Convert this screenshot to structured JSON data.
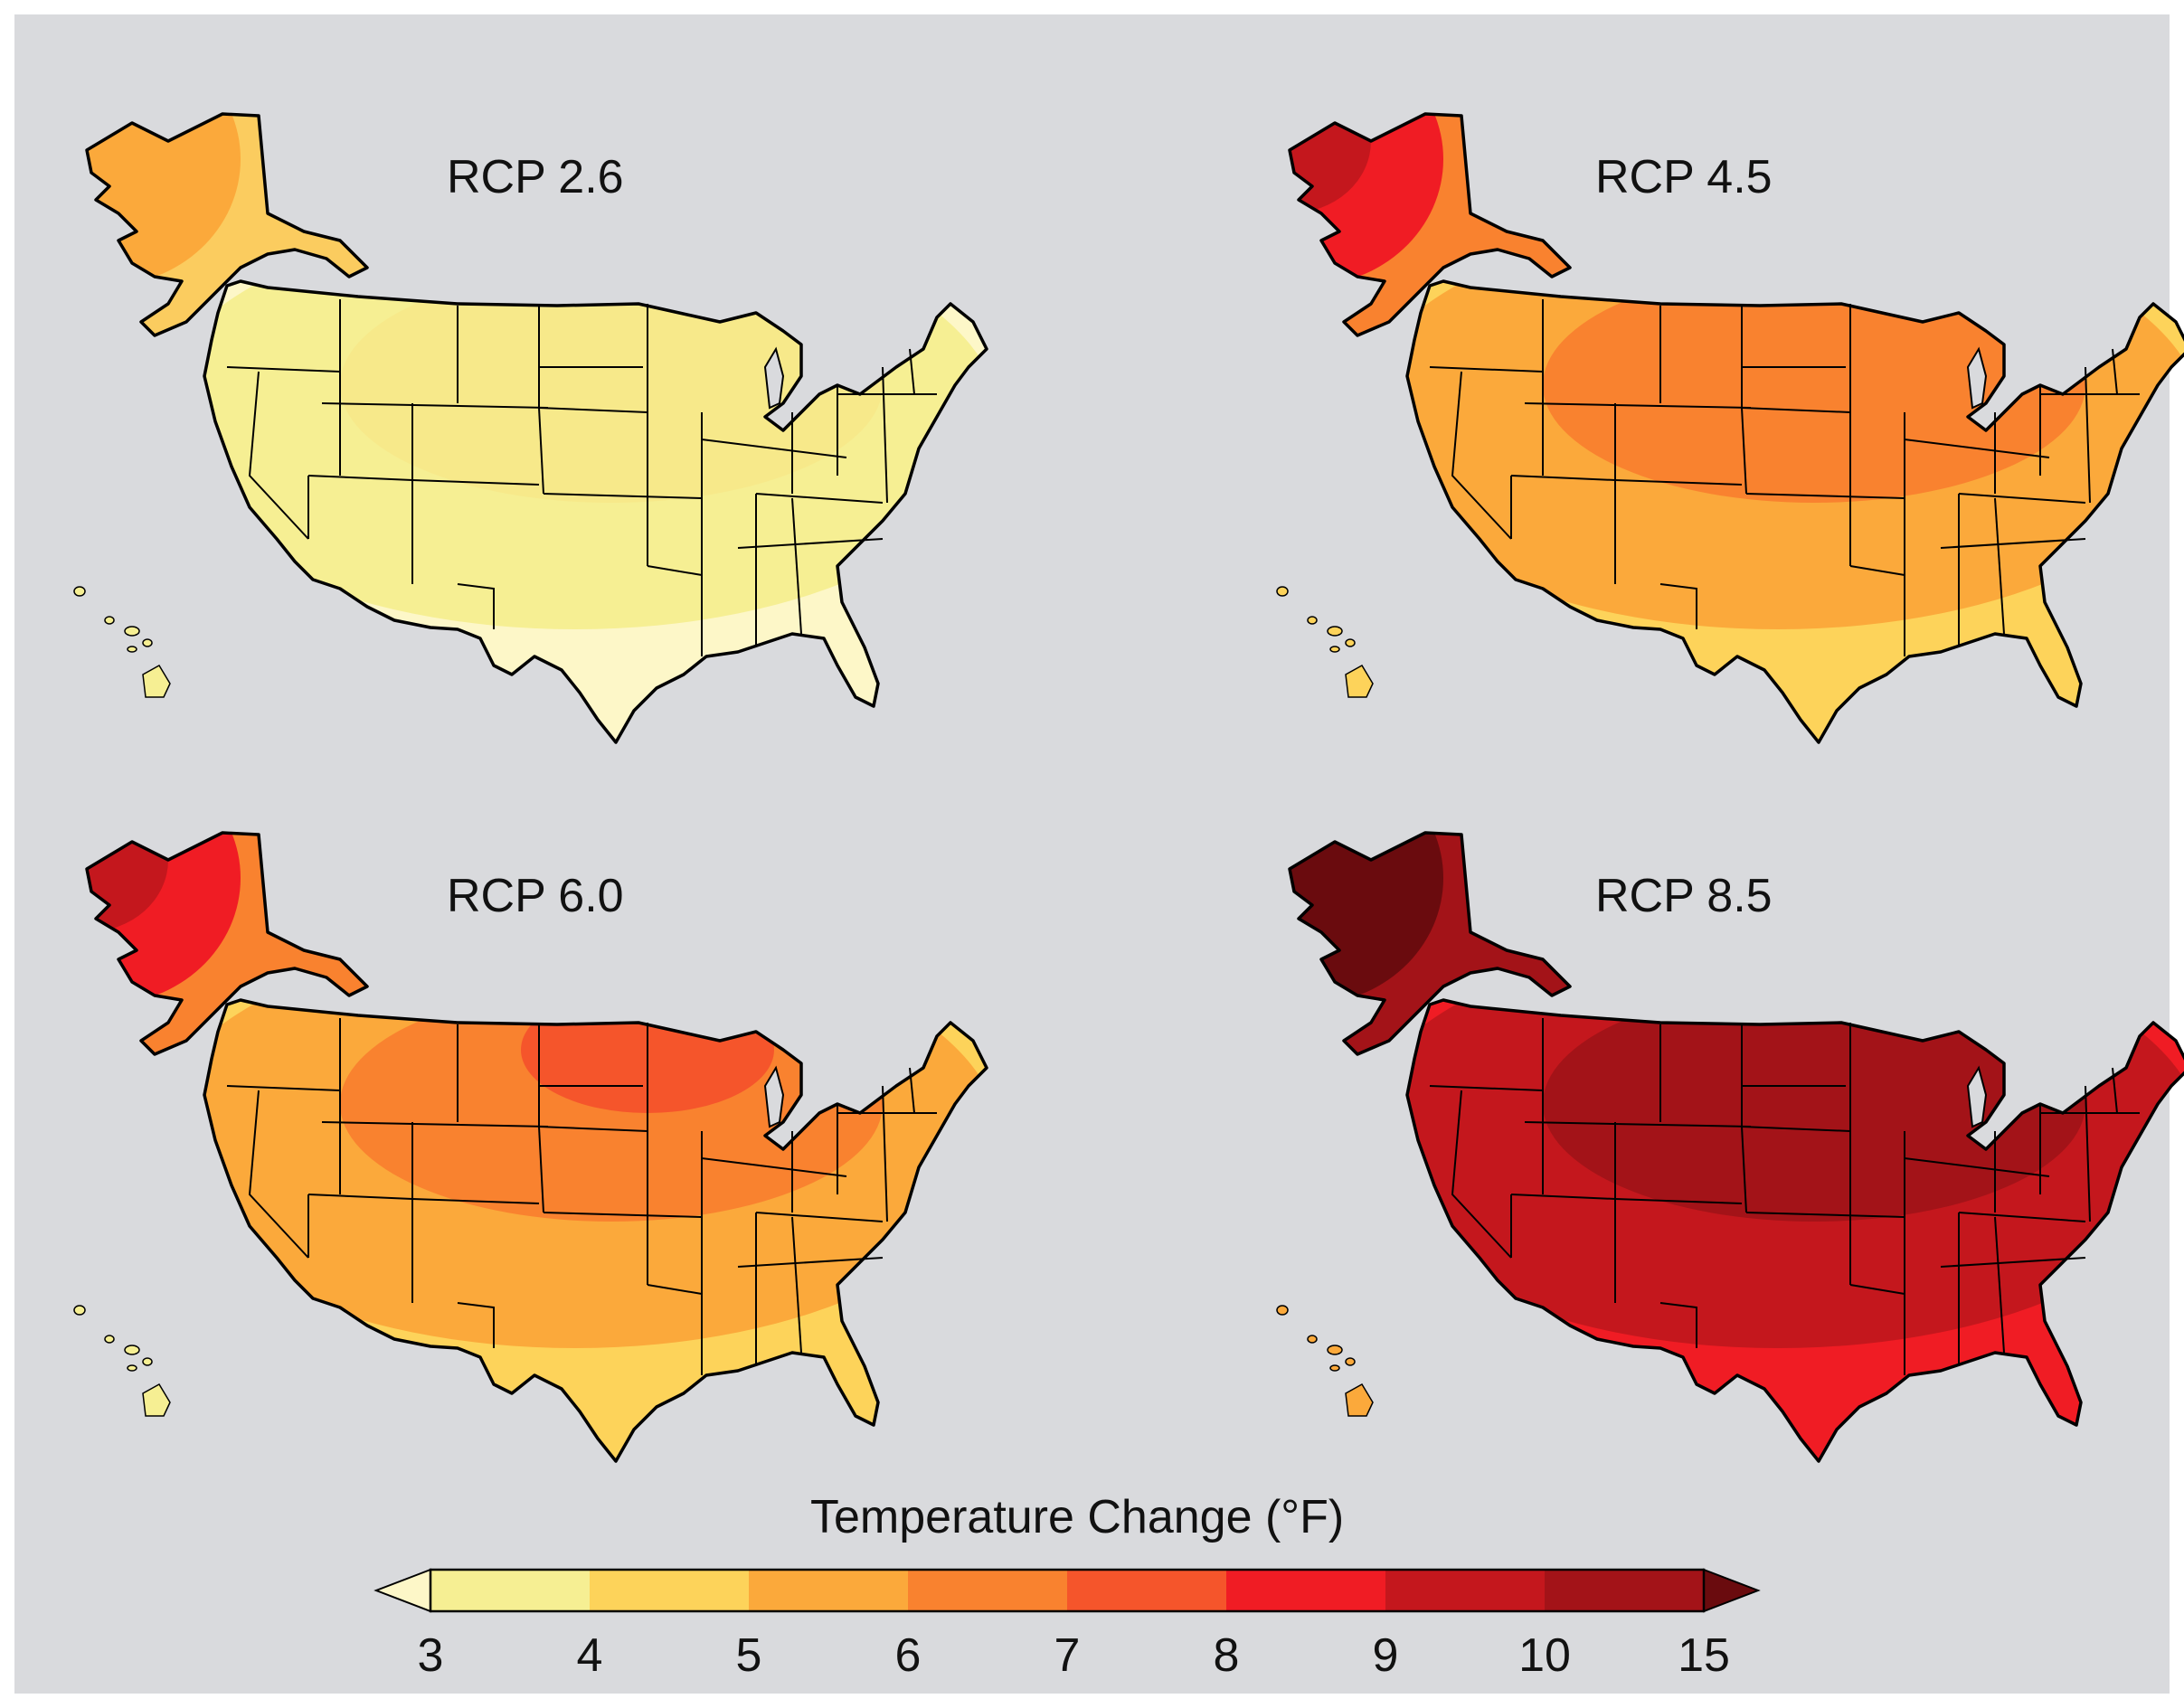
{
  "legend": {
    "title": "Temperature Change (°F)",
    "ticks": [
      "3",
      "4",
      "5",
      "6",
      "7",
      "8",
      "9",
      "10",
      "15"
    ],
    "colors": [
      "#fdf7c8",
      "#f6ef93",
      "#fdd35a",
      "#fba93b",
      "#f9822f",
      "#f5552b",
      "#f01c24",
      "#c4171d",
      "#a31318",
      "#6a0b0e"
    ]
  },
  "panels": [
    {
      "title": "RCP 2.6",
      "alaska": [
        "#fbcc5f",
        "#fba93b"
      ],
      "conus": [
        "#fdf7c8",
        "#f6ef93",
        "#f7e98a"
      ],
      "hawaii": "#f6ef93"
    },
    {
      "title": "RCP 4.5",
      "alaska": [
        "#f9822f",
        "#f01c24",
        "#c4171d"
      ],
      "conus": [
        "#fdd35a",
        "#fba93b",
        "#f9822f"
      ],
      "hawaii": "#fdd35a"
    },
    {
      "title": "RCP 6.0",
      "alaska": [
        "#f9822f",
        "#f01c24",
        "#c4171d"
      ],
      "conus": [
        "#fdd35a",
        "#fba93b",
        "#f9822f",
        "#f5552b"
      ],
      "hawaii": "#f6ef93"
    },
    {
      "title": "RCP 8.5",
      "alaska": [
        "#a31318",
        "#6a0b0e"
      ],
      "conus": [
        "#f01c24",
        "#c4171d",
        "#a31318"
      ],
      "hawaii": "#fba93b"
    }
  ]
}
